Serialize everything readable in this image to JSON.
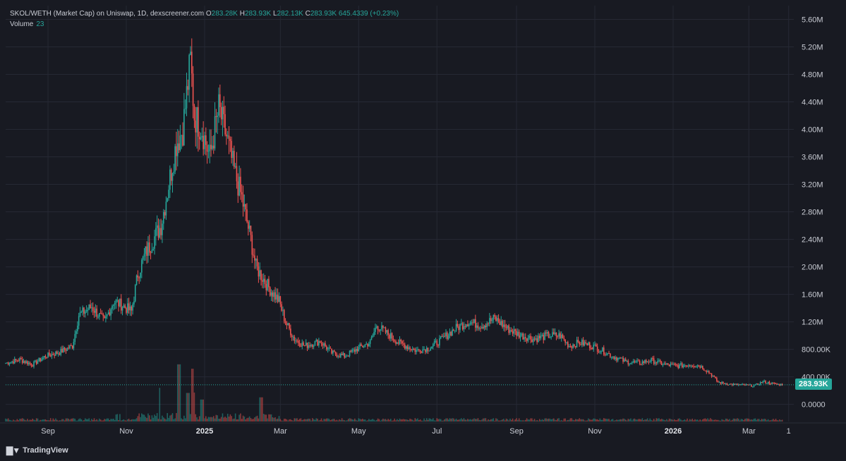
{
  "legend": {
    "title": "SKOL/WETH (Market Cap) on Uniswap, 1D, dexscreener.com",
    "open_label": "O",
    "open": "283.28K",
    "high_label": "H",
    "high": "283.93K",
    "low_label": "L",
    "low": "282.13K",
    "close_label": "C",
    "close": "283.93K",
    "change": "645.4339 (+0.23%)",
    "volume_label": "Volume",
    "volume": "23"
  },
  "last_price_tag": "283.93K",
  "brand": {
    "name": "TradingView",
    "icon": "tradingview-logo-icon"
  },
  "colors": {
    "background": "#181a22",
    "up": "#26a69a",
    "down": "#ef5350",
    "grid": "#262934",
    "axis_text": "#c9ccd4"
  },
  "chart_data": {
    "type": "candlestick",
    "title": "SKOL/WETH (Market Cap) on Uniswap, 1D, dexscreener.com",
    "y_ticks": [
      "0.0000",
      "400.00K",
      "800.00K",
      "1.20M",
      "1.60M",
      "2.00M",
      "2.40M",
      "2.80M",
      "3.20M",
      "3.60M",
      "4.00M",
      "4.40M",
      "4.80M",
      "5.20M",
      "5.60M"
    ],
    "ylim": [
      -250000,
      5800000
    ],
    "x_ticks": [
      {
        "label": "Sep",
        "date": "2024-09-01",
        "bold": false
      },
      {
        "label": "Nov",
        "date": "2024-11-01",
        "bold": false
      },
      {
        "label": "2025",
        "date": "2025-01-01",
        "bold": true
      },
      {
        "label": "Mar",
        "date": "2025-03-01",
        "bold": false
      },
      {
        "label": "May",
        "date": "2025-05-01",
        "bold": false
      },
      {
        "label": "Jul",
        "date": "2025-07-01",
        "bold": false
      },
      {
        "label": "Sep",
        "date": "2025-09-01",
        "bold": false
      },
      {
        "label": "Nov",
        "date": "2025-11-01",
        "bold": false
      },
      {
        "label": "2026",
        "date": "2026-01-01",
        "bold": true
      },
      {
        "label": "Mar",
        "date": "2026-03-01",
        "bold": false
      },
      {
        "label": "1",
        "date": "2026-04-01",
        "bold": false
      }
    ],
    "date_range": [
      "2024-07-30",
      "2026-04-05"
    ],
    "close_series": [
      [
        "2024-07-30",
        600000
      ],
      [
        "2024-08-10",
        650000
      ],
      [
        "2024-08-20",
        580000
      ],
      [
        "2024-08-30",
        700000
      ],
      [
        "2024-09-10",
        760000
      ],
      [
        "2024-09-20",
        850000
      ],
      [
        "2024-09-25",
        1300000
      ],
      [
        "2024-10-05",
        1420000
      ],
      [
        "2024-10-15",
        1200000
      ],
      [
        "2024-10-22",
        1500000
      ],
      [
        "2024-10-28",
        1450000
      ],
      [
        "2024-11-05",
        1350000
      ],
      [
        "2024-11-10",
        1900000
      ],
      [
        "2024-11-16",
        2200000
      ],
      [
        "2024-11-22",
        2400000
      ],
      [
        "2024-11-28",
        2600000
      ],
      [
        "2024-12-05",
        3300000
      ],
      [
        "2024-12-10",
        3800000
      ],
      [
        "2024-12-15",
        4000000
      ],
      [
        "2024-12-18",
        4500000
      ],
      [
        "2024-12-21",
        5000000
      ],
      [
        "2024-12-24",
        4200000
      ],
      [
        "2024-12-30",
        4000000
      ],
      [
        "2025-01-05",
        3600000
      ],
      [
        "2025-01-12",
        4300000
      ],
      [
        "2025-01-18",
        3900000
      ],
      [
        "2025-01-24",
        3400000
      ],
      [
        "2025-01-30",
        3000000
      ],
      [
        "2025-02-06",
        2400000
      ],
      [
        "2025-02-10",
        2000000
      ],
      [
        "2025-02-20",
        1700000
      ],
      [
        "2025-02-28",
        1500000
      ],
      [
        "2025-03-05",
        1200000
      ],
      [
        "2025-03-12",
        950000
      ],
      [
        "2025-03-20",
        850000
      ],
      [
        "2025-04-01",
        920000
      ],
      [
        "2025-04-10",
        750000
      ],
      [
        "2025-04-20",
        700000
      ],
      [
        "2025-05-01",
        820000
      ],
      [
        "2025-05-10",
        900000
      ],
      [
        "2025-05-15",
        1150000
      ],
      [
        "2025-05-22",
        1050000
      ],
      [
        "2025-06-01",
        900000
      ],
      [
        "2025-06-15",
        780000
      ],
      [
        "2025-06-25",
        820000
      ],
      [
        "2025-07-05",
        950000
      ],
      [
        "2025-07-15",
        1100000
      ],
      [
        "2025-07-25",
        1200000
      ],
      [
        "2025-08-05",
        1150000
      ],
      [
        "2025-08-15",
        1250000
      ],
      [
        "2025-08-25",
        1100000
      ],
      [
        "2025-09-05",
        1000000
      ],
      [
        "2025-09-15",
        950000
      ],
      [
        "2025-09-25",
        1000000
      ],
      [
        "2025-10-05",
        1000000
      ],
      [
        "2025-10-12",
        850000
      ],
      [
        "2025-10-20",
        900000
      ],
      [
        "2025-10-30",
        850000
      ],
      [
        "2025-11-05",
        800000
      ],
      [
        "2025-11-15",
        700000
      ],
      [
        "2025-11-25",
        620000
      ],
      [
        "2025-12-05",
        600000
      ],
      [
        "2025-12-15",
        640000
      ],
      [
        "2025-12-25",
        580000
      ],
      [
        "2026-01-05",
        560000
      ],
      [
        "2026-01-15",
        580000
      ],
      [
        "2026-01-22",
        560000
      ],
      [
        "2026-01-30",
        450000
      ],
      [
        "2026-02-05",
        320000
      ],
      [
        "2026-02-15",
        290000
      ],
      [
        "2026-02-25",
        280000
      ],
      [
        "2026-03-05",
        270000
      ],
      [
        "2026-03-12",
        330000
      ],
      [
        "2026-03-20",
        300000
      ],
      [
        "2026-03-27",
        283930
      ]
    ],
    "volume_spikes": [
      [
        "2024-12-12",
        2600000
      ],
      [
        "2024-12-23",
        2400000
      ],
      [
        "2024-12-30",
        1000000
      ],
      [
        "2025-02-14",
        1100000
      ],
      [
        "2024-12-19",
        1300000
      ]
    ]
  }
}
